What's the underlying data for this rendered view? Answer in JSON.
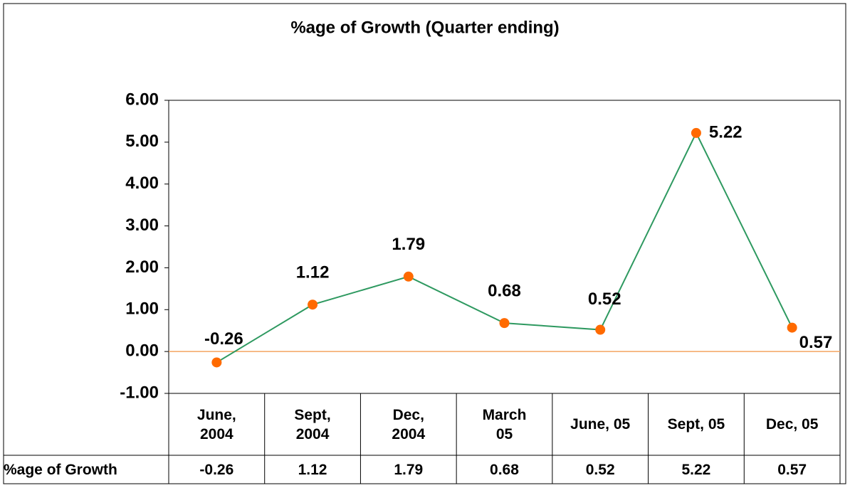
{
  "chart_data": {
    "type": "line",
    "title": "%age of Growth (Quarter ending)",
    "categories": [
      "June,\n2004",
      "Sept,\n2004",
      "Dec,\n2004",
      "March\n05",
      "June, 05",
      "Sept, 05",
      "Dec, 05"
    ],
    "series": [
      {
        "name": "%age of Growth",
        "color": "#2e9960",
        "marker_color": "#ff6a00",
        "values": [
          -0.26,
          1.12,
          1.79,
          0.68,
          0.52,
          5.22,
          0.57
        ]
      }
    ],
    "ylim": [
      -1,
      6
    ],
    "yticks": [
      {
        "value": -1,
        "label": "-1.00"
      },
      {
        "value": 0,
        "label": "0.00"
      },
      {
        "value": 1,
        "label": "1.00"
      },
      {
        "value": 2,
        "label": "2.00"
      },
      {
        "value": 3,
        "label": "3.00"
      },
      {
        "value": 4,
        "label": "4.00"
      },
      {
        "value": 5,
        "label": "5.00"
      },
      {
        "value": 6,
        "label": "6.00"
      }
    ],
    "zero_line_color": "#f4a460",
    "data_table": true
  }
}
